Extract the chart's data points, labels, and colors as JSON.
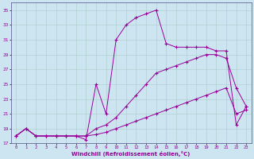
{
  "xlabel": "Windchill (Refroidissement éolien,°C)",
  "bg_color": "#cce5f0",
  "line_color": "#990099",
  "grid_color": "#aacccc",
  "xlim": [
    -0.5,
    23.5
  ],
  "ylim": [
    17,
    36
  ],
  "xticks": [
    0,
    1,
    2,
    3,
    4,
    5,
    6,
    7,
    8,
    9,
    10,
    11,
    12,
    13,
    14,
    15,
    16,
    17,
    18,
    19,
    20,
    21,
    22,
    23
  ],
  "yticks": [
    17,
    19,
    21,
    23,
    25,
    27,
    29,
    31,
    33,
    35
  ],
  "line1_x": [
    0,
    1,
    2,
    3,
    4,
    5,
    6,
    7,
    8,
    9,
    10,
    11,
    12,
    13,
    14,
    15,
    16,
    17,
    18,
    19,
    20,
    21,
    22,
    23
  ],
  "line1_y": [
    18.0,
    19.0,
    18.0,
    18.0,
    18.0,
    18.0,
    18.0,
    18.0,
    18.2,
    18.5,
    19.0,
    19.5,
    20.0,
    20.5,
    21.0,
    21.5,
    22.0,
    22.5,
    23.0,
    23.5,
    24.0,
    24.5,
    21.0,
    21.5
  ],
  "line2_x": [
    0,
    1,
    2,
    3,
    4,
    5,
    6,
    7,
    8,
    9,
    10,
    11,
    12,
    13,
    14,
    15,
    16,
    17,
    18,
    19,
    20,
    21,
    22,
    23
  ],
  "line2_y": [
    18.0,
    19.0,
    18.0,
    18.0,
    18.0,
    18.0,
    18.0,
    18.0,
    19.0,
    19.5,
    20.5,
    22.0,
    23.5,
    25.0,
    26.5,
    27.0,
    27.5,
    28.0,
    28.5,
    29.0,
    29.0,
    28.5,
    24.5,
    22.0
  ],
  "line3_x": [
    0,
    1,
    2,
    3,
    4,
    5,
    6,
    7,
    8,
    9,
    10,
    11,
    12,
    13,
    14,
    15,
    16,
    17,
    18,
    19,
    20,
    21,
    22,
    23
  ],
  "line3_y": [
    18.0,
    19.0,
    18.0,
    18.0,
    18.0,
    18.0,
    18.0,
    17.5,
    25.0,
    21.0,
    31.0,
    33.0,
    34.0,
    34.5,
    35.0,
    30.5,
    30.0,
    30.0,
    30.0,
    30.0,
    29.5,
    29.5,
    19.5,
    22.0
  ]
}
